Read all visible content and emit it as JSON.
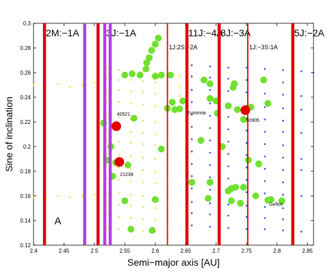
{
  "chart_data": {
    "type": "scatter",
    "xlabel": "Semi−major axis [AU]",
    "ylabel": "Sine of inclination",
    "xlim": [
      2.4,
      2.86
    ],
    "ylim": [
      0.12,
      0.3
    ],
    "xticks": [
      2.4,
      2.45,
      2.5,
      2.55,
      2.6,
      2.65,
      2.7,
      2.75,
      2.8,
      2.85
    ],
    "xtick_labels": [
      "2.4",
      "2.45",
      "2.5",
      "2.55",
      "2.6",
      "2.65",
      "2.7",
      "2.75",
      "2.8",
      "2.85"
    ],
    "yticks": [
      0.12,
      0.14,
      0.16,
      0.18,
      0.2,
      0.22,
      0.24,
      0.26,
      0.28,
      0.3
    ],
    "ytick_labels": [
      "0.12",
      "0.14",
      "0.16",
      "0.18",
      "0.2",
      "0.22",
      "0.24",
      "0.26",
      "0.28",
      "0.3"
    ],
    "grid": false,
    "panel_label": "A",
    "resonances": [
      {
        "label": "2M:−1A",
        "a": 2.418,
        "color": "#e00000",
        "width": "thick"
      },
      {
        "label": "",
        "a": 2.484,
        "color": "#b040e0",
        "width": "thick"
      },
      {
        "label": "",
        "a": 2.506,
        "color": "#e00000",
        "width": "thick"
      },
      {
        "label": "3J:−1A",
        "a": 2.517,
        "color": "#b040e0",
        "width": "thick"
      },
      {
        "label": "",
        "a": 2.526,
        "color": "#b040e0",
        "width": "thick"
      },
      {
        "label": "1J:2S:−2A",
        "a": 2.62,
        "color": "#e00000",
        "width": "thin"
      },
      {
        "label": "11J:−4A",
        "a": 2.652,
        "color": "#e00000",
        "width": "thick"
      },
      {
        "label": "8J:−3A",
        "a": 2.705,
        "color": "#e00000",
        "width": "thick"
      },
      {
        "label": "1J:−3S:1A",
        "a": 2.752,
        "color": "#e00000",
        "width": "thin"
      },
      {
        "label": "5J:−2A",
        "a": 2.826,
        "color": "#e00000",
        "width": "thick"
      }
    ],
    "named_asteroids": [
      {
        "label": "40521",
        "a": 2.536,
        "sini": 0.2165,
        "color": "#e00000",
        "label_a": 2.537,
        "label_sini": 0.225
      },
      {
        "label": "21238",
        "a": 2.541,
        "sini": 0.1875,
        "color": "#e00000",
        "label_a": 2.542,
        "label_sini": 0.176
      },
      {
        "label": "Eunomia",
        "a": 2.64,
        "sini": 0.2305,
        "color": "#70e030",
        "label_a": 2.652,
        "label_sini": 0.226
      },
      {
        "label": "50905",
        "a": 2.748,
        "sini": 0.2295,
        "color": "#e00000",
        "label_a": 2.749,
        "label_sini": 0.22
      },
      {
        "label": "Gefion",
        "a": 2.785,
        "sini": 0.1565,
        "color": "#70e030",
        "label_a": 2.787,
        "label_sini": 0.152
      }
    ],
    "series": [
      {
        "color": "#e8e830",
        "marker": "small dots",
        "points": [
          [
            2.4,
            0.25
          ],
          [
            2.42,
            0.249
          ],
          [
            2.44,
            0.251
          ],
          [
            2.46,
            0.248
          ],
          [
            2.48,
            0.25
          ],
          [
            2.5,
            0.252
          ],
          [
            2.4,
            0.159
          ],
          [
            2.42,
            0.158
          ],
          [
            2.44,
            0.16
          ],
          [
            2.46,
            0.159
          ],
          [
            2.48,
            0.16
          ],
          [
            2.5,
            0.161
          ],
          [
            2.52,
            0.264
          ],
          [
            2.54,
            0.262
          ],
          [
            2.56,
            0.261
          ],
          [
            2.58,
            0.261
          ],
          [
            2.6,
            0.26
          ],
          [
            2.62,
            0.258
          ],
          [
            2.64,
            0.257
          ],
          [
            2.66,
            0.256
          ],
          [
            2.52,
            0.255
          ],
          [
            2.54,
            0.254
          ],
          [
            2.56,
            0.254
          ],
          [
            2.58,
            0.253
          ],
          [
            2.6,
            0.252
          ],
          [
            2.62,
            0.25
          ],
          [
            2.64,
            0.249
          ],
          [
            2.52,
            0.245
          ],
          [
            2.54,
            0.246
          ],
          [
            2.56,
            0.245
          ],
          [
            2.58,
            0.244
          ],
          [
            2.6,
            0.243
          ],
          [
            2.62,
            0.242
          ],
          [
            2.64,
            0.241
          ],
          [
            2.52,
            0.236
          ],
          [
            2.54,
            0.236
          ],
          [
            2.56,
            0.235
          ],
          [
            2.58,
            0.234
          ],
          [
            2.6,
            0.233
          ],
          [
            2.62,
            0.232
          ],
          [
            2.52,
            0.226
          ],
          [
            2.54,
            0.224
          ],
          [
            2.56,
            0.222
          ],
          [
            2.58,
            0.221
          ],
          [
            2.6,
            0.22
          ],
          [
            2.62,
            0.219
          ],
          [
            2.52,
            0.214
          ],
          [
            2.54,
            0.213
          ],
          [
            2.56,
            0.212
          ],
          [
            2.58,
            0.211
          ],
          [
            2.6,
            0.21
          ],
          [
            2.62,
            0.209
          ],
          [
            2.52,
            0.205
          ],
          [
            2.54,
            0.204
          ],
          [
            2.56,
            0.203
          ],
          [
            2.58,
            0.202
          ],
          [
            2.6,
            0.201
          ],
          [
            2.62,
            0.2
          ],
          [
            2.52,
            0.194
          ],
          [
            2.54,
            0.193
          ],
          [
            2.56,
            0.192
          ],
          [
            2.58,
            0.191
          ],
          [
            2.6,
            0.19
          ],
          [
            2.62,
            0.189
          ],
          [
            2.52,
            0.184
          ],
          [
            2.54,
            0.183
          ],
          [
            2.56,
            0.182
          ],
          [
            2.58,
            0.181
          ],
          [
            2.6,
            0.18
          ],
          [
            2.62,
            0.179
          ],
          [
            2.52,
            0.174
          ],
          [
            2.54,
            0.173
          ],
          [
            2.56,
            0.172
          ],
          [
            2.58,
            0.171
          ],
          [
            2.6,
            0.17
          ],
          [
            2.62,
            0.169
          ],
          [
            2.52,
            0.163
          ],
          [
            2.54,
            0.162
          ],
          [
            2.56,
            0.161
          ],
          [
            2.58,
            0.16
          ],
          [
            2.6,
            0.159
          ],
          [
            2.62,
            0.158
          ],
          [
            2.52,
            0.154
          ],
          [
            2.54,
            0.153
          ],
          [
            2.56,
            0.152
          ],
          [
            2.58,
            0.151
          ],
          [
            2.6,
            0.15
          ],
          [
            2.62,
            0.149
          ],
          [
            2.52,
            0.144
          ],
          [
            2.54,
            0.143
          ],
          [
            2.56,
            0.142
          ],
          [
            2.58,
            0.141
          ],
          [
            2.6,
            0.14
          ],
          [
            2.62,
            0.139
          ],
          [
            2.52,
            0.134
          ],
          [
            2.54,
            0.133
          ],
          [
            2.56,
            0.132
          ],
          [
            2.58,
            0.131
          ],
          [
            2.6,
            0.131
          ],
          [
            2.62,
            0.13
          ]
        ]
      },
      {
        "color": "#3050e0",
        "marker": "small dots",
        "points": [
          [
            2.66,
            0.266
          ],
          [
            2.69,
            0.265
          ],
          [
            2.72,
            0.264
          ],
          [
            2.75,
            0.264
          ],
          [
            2.78,
            0.263
          ],
          [
            2.81,
            0.262
          ],
          [
            2.84,
            0.261
          ],
          [
            2.86,
            0.26
          ],
          [
            2.66,
            0.257
          ],
          [
            2.69,
            0.256
          ],
          [
            2.72,
            0.255
          ],
          [
            2.75,
            0.254
          ],
          [
            2.78,
            0.253
          ],
          [
            2.81,
            0.252
          ],
          [
            2.66,
            0.246
          ],
          [
            2.69,
            0.246
          ],
          [
            2.72,
            0.245
          ],
          [
            2.75,
            0.244
          ],
          [
            2.78,
            0.243
          ],
          [
            2.81,
            0.242
          ],
          [
            2.84,
            0.241
          ],
          [
            2.66,
            0.236
          ],
          [
            2.69,
            0.235
          ],
          [
            2.72,
            0.234
          ],
          [
            2.75,
            0.233
          ],
          [
            2.78,
            0.232
          ],
          [
            2.81,
            0.231
          ],
          [
            2.84,
            0.23
          ],
          [
            2.66,
            0.226
          ],
          [
            2.69,
            0.225
          ],
          [
            2.72,
            0.224
          ],
          [
            2.75,
            0.223
          ],
          [
            2.78,
            0.222
          ],
          [
            2.81,
            0.221
          ],
          [
            2.66,
            0.216
          ],
          [
            2.69,
            0.215
          ],
          [
            2.72,
            0.214
          ],
          [
            2.75,
            0.213
          ],
          [
            2.78,
            0.212
          ],
          [
            2.81,
            0.212
          ],
          [
            2.84,
            0.211
          ],
          [
            2.66,
            0.206
          ],
          [
            2.69,
            0.205
          ],
          [
            2.72,
            0.204
          ],
          [
            2.75,
            0.203
          ],
          [
            2.78,
            0.202
          ],
          [
            2.81,
            0.201
          ],
          [
            2.66,
            0.196
          ],
          [
            2.69,
            0.195
          ],
          [
            2.72,
            0.194
          ],
          [
            2.75,
            0.193
          ],
          [
            2.78,
            0.192
          ],
          [
            2.81,
            0.191
          ],
          [
            2.84,
            0.19
          ],
          [
            2.66,
            0.186
          ],
          [
            2.69,
            0.185
          ],
          [
            2.72,
            0.184
          ],
          [
            2.75,
            0.183
          ],
          [
            2.78,
            0.182
          ],
          [
            2.81,
            0.181
          ],
          [
            2.84,
            0.181
          ],
          [
            2.66,
            0.176
          ],
          [
            2.69,
            0.175
          ],
          [
            2.72,
            0.174
          ],
          [
            2.75,
            0.173
          ],
          [
            2.78,
            0.172
          ],
          [
            2.81,
            0.171
          ],
          [
            2.66,
            0.166
          ],
          [
            2.69,
            0.165
          ],
          [
            2.72,
            0.164
          ],
          [
            2.75,
            0.163
          ],
          [
            2.78,
            0.162
          ],
          [
            2.81,
            0.161
          ],
          [
            2.84,
            0.16
          ],
          [
            2.66,
            0.155
          ],
          [
            2.69,
            0.154
          ],
          [
            2.72,
            0.153
          ],
          [
            2.75,
            0.152
          ],
          [
            2.78,
            0.151
          ],
          [
            2.81,
            0.15
          ],
          [
            2.66,
            0.146
          ],
          [
            2.69,
            0.145
          ],
          [
            2.72,
            0.144
          ],
          [
            2.75,
            0.143
          ],
          [
            2.78,
            0.142
          ],
          [
            2.81,
            0.141
          ],
          [
            2.66,
            0.136
          ],
          [
            2.69,
            0.135
          ],
          [
            2.72,
            0.134
          ],
          [
            2.75,
            0.133
          ],
          [
            2.78,
            0.133
          ],
          [
            2.81,
            0.132
          ],
          [
            2.84,
            0.131
          ]
        ]
      },
      {
        "color": "#70e030",
        "marker": "large circles",
        "points": [
          [
            2.605,
            0.288
          ],
          [
            2.6,
            0.283
          ],
          [
            2.594,
            0.278
          ],
          [
            2.59,
            0.272
          ],
          [
            2.586,
            0.268
          ],
          [
            2.55,
            0.258
          ],
          [
            2.562,
            0.259
          ],
          [
            2.575,
            0.258
          ],
          [
            2.585,
            0.263
          ],
          [
            2.6,
            0.257
          ],
          [
            2.61,
            0.258
          ],
          [
            2.625,
            0.258
          ],
          [
            2.68,
            0.254
          ],
          [
            2.69,
            0.251
          ],
          [
            2.728,
            0.248
          ],
          [
            2.73,
            0.251
          ],
          [
            2.778,
            0.254
          ],
          [
            2.628,
            0.236
          ],
          [
            2.645,
            0.237
          ],
          [
            2.69,
            0.239
          ],
          [
            2.7,
            0.237
          ],
          [
            2.72,
            0.233
          ],
          [
            2.735,
            0.23
          ],
          [
            2.757,
            0.232
          ],
          [
            2.785,
            0.235
          ],
          [
            2.515,
            0.219
          ],
          [
            2.565,
            0.223
          ],
          [
            2.62,
            0.231
          ],
          [
            2.632,
            0.23
          ],
          [
            2.702,
            0.227
          ],
          [
            2.745,
            0.222
          ],
          [
            2.527,
            0.2
          ],
          [
            2.535,
            0.187
          ],
          [
            2.52,
            0.189
          ],
          [
            2.555,
            0.185
          ],
          [
            2.61,
            0.198
          ],
          [
            2.675,
            0.205
          ],
          [
            2.71,
            0.2
          ],
          [
            2.753,
            0.189
          ],
          [
            2.77,
            0.186
          ],
          [
            2.53,
            0.176
          ],
          [
            2.66,
            0.171
          ],
          [
            2.69,
            0.171
          ],
          [
            2.72,
            0.164
          ],
          [
            2.725,
            0.166
          ],
          [
            2.732,
            0.167
          ],
          [
            2.745,
            0.167
          ],
          [
            2.55,
            0.156
          ],
          [
            2.6,
            0.157
          ],
          [
            2.687,
            0.158
          ],
          [
            2.725,
            0.156
          ],
          [
            2.74,
            0.154
          ],
          [
            2.765,
            0.16
          ],
          [
            2.79,
            0.157
          ],
          [
            2.808,
            0.156
          ],
          [
            2.56,
            0.133
          ],
          [
            2.595,
            0.132
          ]
        ]
      }
    ]
  }
}
